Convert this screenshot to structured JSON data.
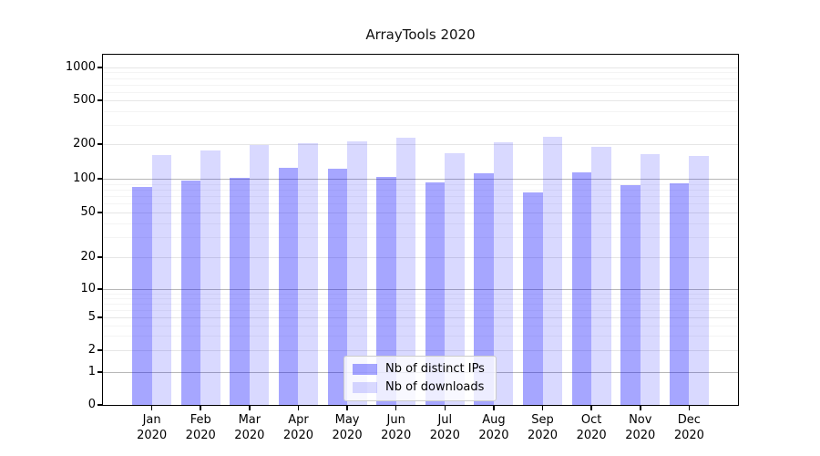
{
  "chart_data": {
    "type": "bar",
    "title": "ArrayTools 2020",
    "categories": [
      "Jan",
      "Feb",
      "Mar",
      "Apr",
      "May",
      "Jun",
      "Jul",
      "Aug",
      "Sep",
      "Oct",
      "Nov",
      "Dec"
    ],
    "x_sublabel": "2020",
    "series": [
      {
        "name": "Nb of distinct IPs",
        "color": "rgba(0,0,255,0.35)",
        "values": [
          84,
          97,
          101,
          124,
          122,
          104,
          92,
          111,
          76,
          113,
          87,
          91
        ]
      },
      {
        "name": "Nb of downloads",
        "color": "rgba(0,0,255,0.15)",
        "values": [
          160,
          176,
          195,
          203,
          212,
          228,
          167,
          208,
          235,
          190,
          164,
          157
        ]
      }
    ],
    "yscale": "asinh (log-like, shows 0)",
    "ylim": [
      0,
      1000
    ],
    "yticks": [
      0,
      1,
      2,
      5,
      10,
      20,
      50,
      100,
      200,
      500,
      1000
    ],
    "minor_gridlines": [
      3,
      4,
      6,
      7,
      8,
      9,
      30,
      40,
      60,
      70,
      80,
      90,
      300,
      400,
      600,
      700,
      800,
      900
    ],
    "emphasized_gridlines": [
      1,
      10,
      100
    ],
    "grid": "on",
    "legend_position": "lower center",
    "colors": {
      "axis": "#000000",
      "grid_major": "#e6e6e6",
      "grid_strong": "#b7b7b7",
      "grid_minor": "#f4f4f4"
    }
  }
}
